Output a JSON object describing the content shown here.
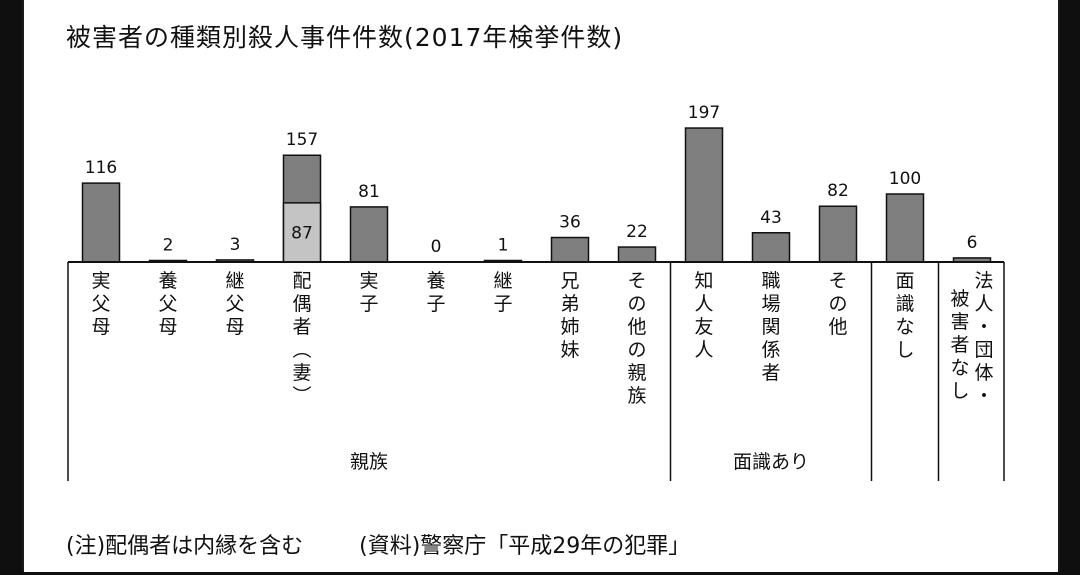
{
  "title": "被害者の種類別殺人事件件数(2017年検挙件数)",
  "footnote": {
    "note": "(注)配偶者は内縁を含む",
    "source": "(資料)警察庁「平成29年の犯罪」"
  },
  "colors": {
    "bar": "#7f7f7f",
    "bar_inner": "#c4c4c4",
    "stroke": "#111111"
  },
  "chart_data": {
    "type": "bar",
    "title": "被害者の種類別殺人事件件数(2017年検挙件数)",
    "categories": [
      "実父母",
      "養父母",
      "継父母",
      "配偶者(妻)",
      "実子",
      "養子",
      "継子",
      "兄弟姉妹",
      "その他の親族",
      "知人友人",
      "職場関係者",
      "その他",
      "面識なし",
      "法人・団体・被害者なし"
    ],
    "values": [
      116,
      2,
      3,
      157,
      81,
      0,
      1,
      36,
      22,
      197,
      43,
      82,
      100,
      6
    ],
    "inner_values": [
      null,
      null,
      null,
      87,
      null,
      null,
      null,
      null,
      null,
      null,
      null,
      null,
      null,
      null
    ],
    "inner_label_note": "配偶者(妻)",
    "groups": [
      {
        "label": "親族",
        "start": 0,
        "end": 8
      },
      {
        "label": "面識あり",
        "start": 9,
        "end": 11
      },
      {
        "label": "",
        "start": 12,
        "end": 12
      },
      {
        "label": "",
        "start": 13,
        "end": 13
      }
    ],
    "ylim": [
      0,
      210
    ],
    "grid": false,
    "legend": "none"
  }
}
